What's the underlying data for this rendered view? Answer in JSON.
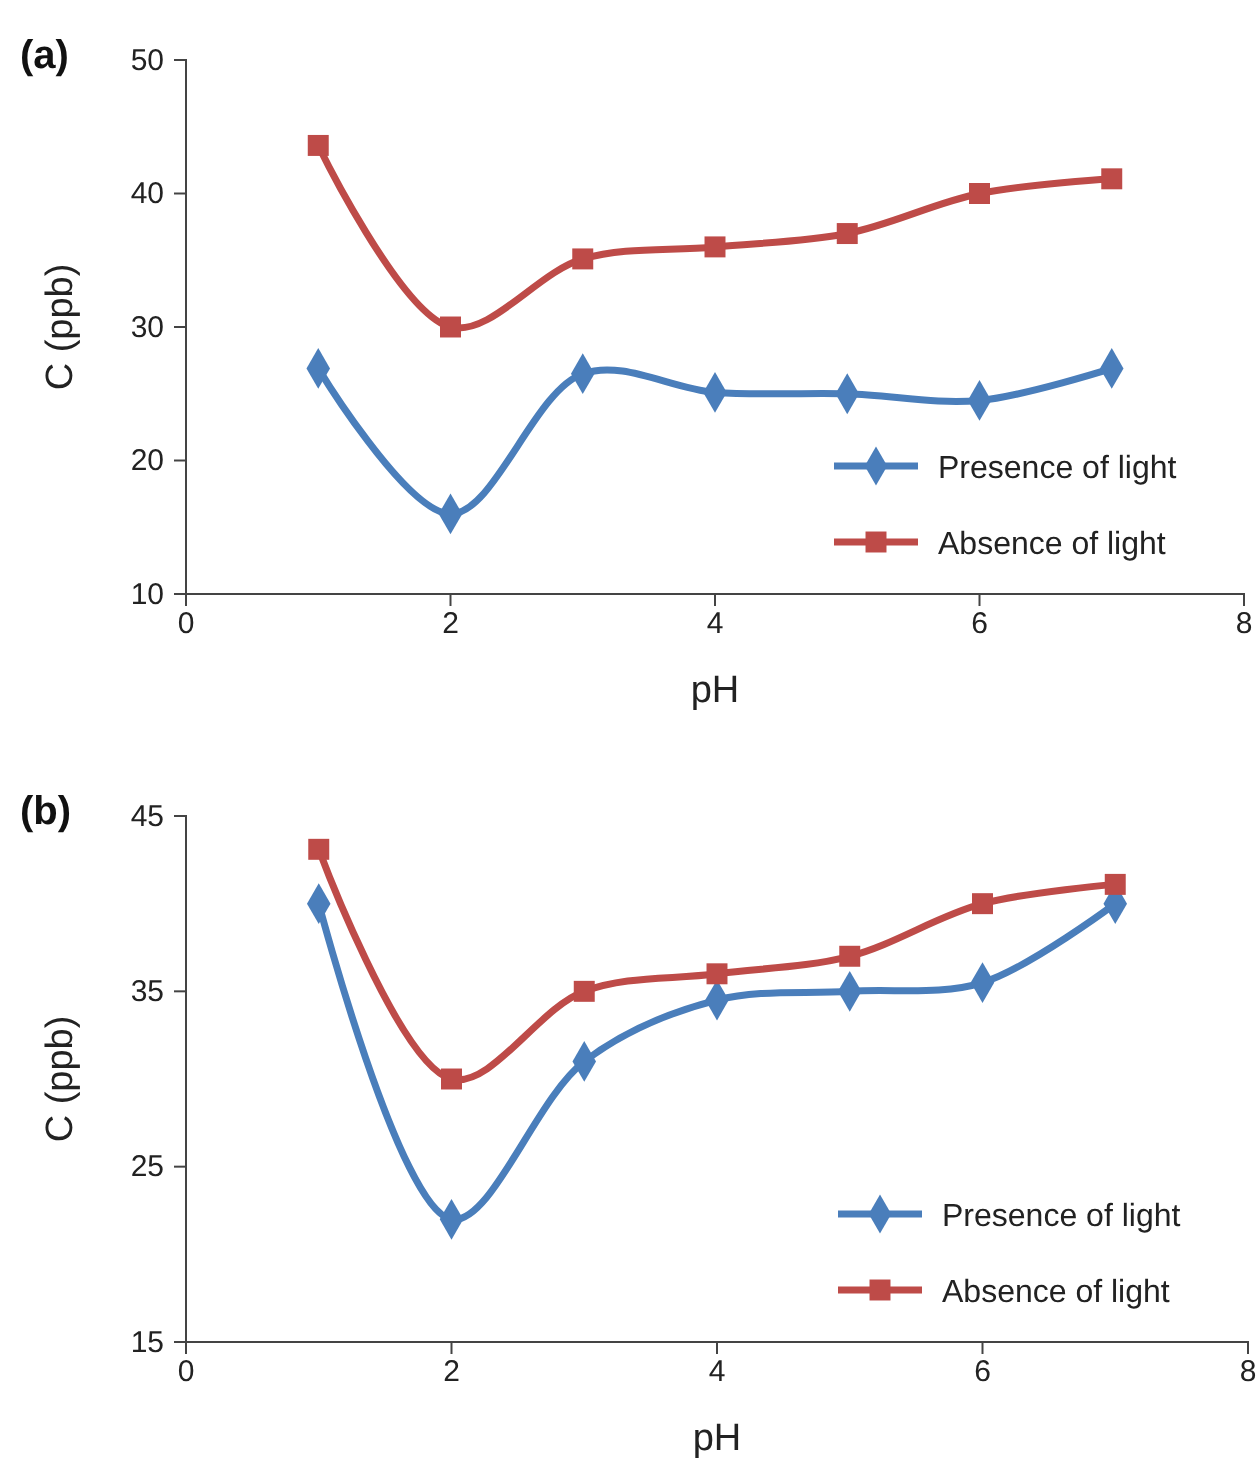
{
  "chart_data": [
    {
      "type": "line",
      "annotations": [
        "(a)"
      ],
      "xlabel": "pH",
      "ylabel": "C (ppb)",
      "x": [
        1,
        2,
        3,
        4,
        5,
        6,
        7
      ],
      "xlim": [
        0,
        8
      ],
      "xticks": [
        0,
        2,
        4,
        6,
        8
      ],
      "ylim": [
        10,
        50
      ],
      "yticks": [
        10,
        20,
        30,
        40,
        50
      ],
      "grid": false,
      "legend": "bottom right",
      "line_style": "solid",
      "series": [
        {
          "name": "Presence of light",
          "color": "#4a7ebb",
          "marker": "diamond",
          "values": [
            26.9,
            16,
            26.5,
            25.1,
            25,
            24.5,
            26.9
          ]
        },
        {
          "name": "Absence of light",
          "color": "#be4b48",
          "marker": "square",
          "values": [
            43.6,
            30,
            35.1,
            36,
            37,
            40,
            41.1
          ]
        }
      ]
    },
    {
      "type": "line",
      "annotations": [
        "(b)"
      ],
      "xlabel": "pH",
      "ylabel": "C (ppb)",
      "x": [
        1,
        2,
        3,
        4,
        5,
        6,
        7
      ],
      "xlim": [
        0,
        8
      ],
      "xticks": [
        0,
        2,
        4,
        6,
        8
      ],
      "ylim": [
        15,
        45
      ],
      "yticks": [
        15,
        25,
        35,
        45
      ],
      "grid": false,
      "legend": "bottom right",
      "line_style": "solid",
      "series": [
        {
          "name": "Presence of light",
          "color": "#4a7ebb",
          "marker": "diamond",
          "values": [
            40,
            22,
            31,
            34.5,
            35,
            35.5,
            40
          ]
        },
        {
          "name": "Absence of light",
          "color": "#be4b48",
          "marker": "square",
          "values": [
            43.1,
            30,
            35,
            36,
            37,
            40,
            41.1
          ]
        }
      ]
    }
  ]
}
